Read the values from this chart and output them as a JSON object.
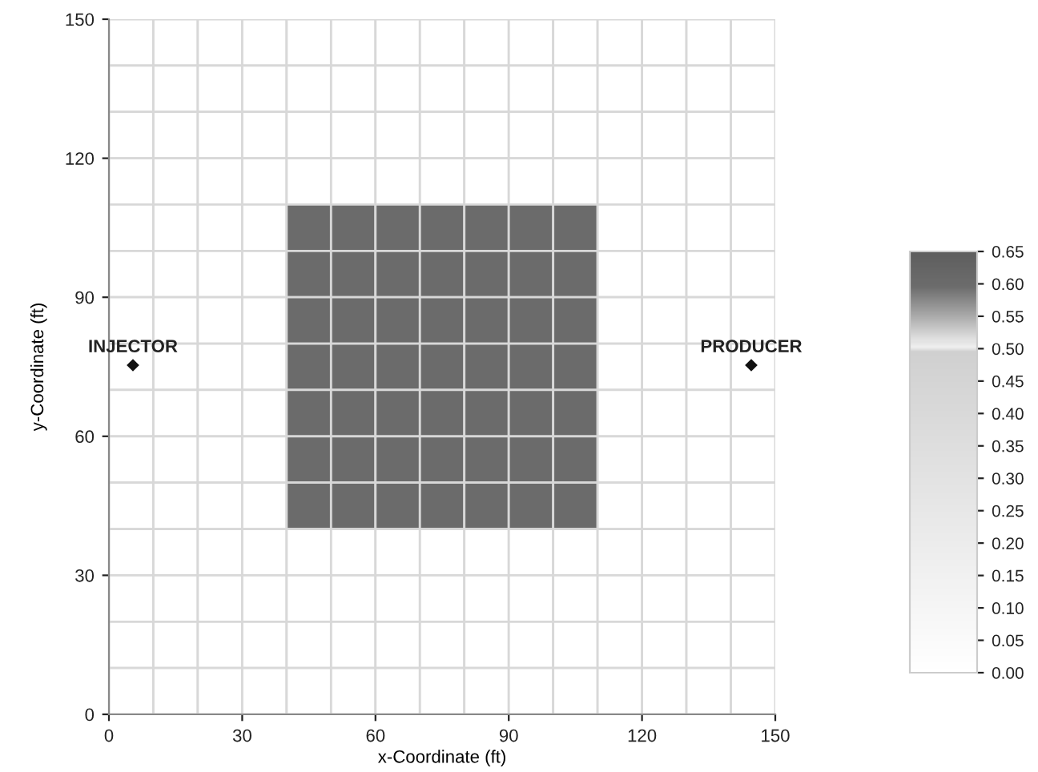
{
  "chart_data": {
    "type": "heatmap",
    "xlabel": "x-Coordinate (ft)",
    "ylabel": "y-Coordinate (ft)",
    "xlim": [
      0,
      150
    ],
    "xticks": [
      0,
      30,
      60,
      90,
      120,
      150
    ],
    "ylim": [
      0,
      150
    ],
    "yticks": [
      0,
      30,
      60,
      90,
      120,
      150
    ],
    "clim": [
      0,
      0.65
    ],
    "cticks": [
      {
        "value": 0,
        "label": "0.00"
      },
      {
        "value": 0.05,
        "label": "0.05"
      },
      {
        "value": 0.1,
        "label": "0.10"
      },
      {
        "value": 0.15,
        "label": "0.15"
      },
      {
        "value": 0.2,
        "label": "0.20"
      },
      {
        "value": 0.25,
        "label": "0.25"
      },
      {
        "value": 0.3,
        "label": "0.30"
      },
      {
        "value": 0.35,
        "label": "0.35"
      },
      {
        "value": 0.4,
        "label": "0.40"
      },
      {
        "value": 0.45,
        "label": "0.45"
      },
      {
        "value": 0.5,
        "label": "0.50"
      },
      {
        "value": 0.55,
        "label": "0.55"
      },
      {
        "value": 0.6,
        "label": "0.60"
      },
      {
        "value": 0.65,
        "label": "0.65"
      }
    ],
    "cells": [
      [
        0,
        0,
        0,
        0,
        0,
        0,
        0,
        0,
        0,
        0,
        0,
        0,
        0,
        0,
        0
      ],
      [
        0,
        0,
        0,
        0,
        0,
        0,
        0,
        0,
        0,
        0,
        0,
        0,
        0,
        0,
        0
      ],
      [
        0,
        0,
        0,
        0,
        0,
        0,
        0,
        0,
        0,
        0,
        0,
        0,
        0,
        0,
        0
      ],
      [
        0,
        0,
        0,
        0,
        0,
        0,
        0,
        0,
        0,
        0,
        0,
        0,
        0,
        0,
        0
      ],
      [
        0,
        0,
        0,
        0,
        0.6,
        0.6,
        0.6,
        0.6,
        0.6,
        0.6,
        0.6,
        0,
        0,
        0,
        0
      ],
      [
        0,
        0,
        0,
        0,
        0.6,
        0.6,
        0.6,
        0.6,
        0.6,
        0.6,
        0.6,
        0,
        0,
        0,
        0
      ],
      [
        0,
        0,
        0,
        0,
        0.6,
        0.6,
        0.6,
        0.6,
        0.6,
        0.6,
        0.6,
        0,
        0,
        0,
        0
      ],
      [
        0,
        0,
        0,
        0,
        0.6,
        0.6,
        0.6,
        0.6,
        0.6,
        0.6,
        0.6,
        0,
        0,
        0,
        0
      ],
      [
        0,
        0,
        0,
        0,
        0.6,
        0.6,
        0.6,
        0.6,
        0.6,
        0.6,
        0.6,
        0,
        0,
        0,
        0
      ],
      [
        0,
        0,
        0,
        0,
        0.6,
        0.6,
        0.6,
        0.6,
        0.6,
        0.6,
        0.6,
        0,
        0,
        0,
        0
      ],
      [
        0,
        0,
        0,
        0,
        0.6,
        0.6,
        0.6,
        0.6,
        0.6,
        0.6,
        0.6,
        0,
        0,
        0,
        0
      ],
      [
        0,
        0,
        0,
        0,
        0,
        0,
        0,
        0,
        0,
        0,
        0,
        0,
        0,
        0,
        0
      ],
      [
        0,
        0,
        0,
        0,
        0,
        0,
        0,
        0,
        0,
        0,
        0,
        0,
        0,
        0,
        0
      ],
      [
        0,
        0,
        0,
        0,
        0,
        0,
        0,
        0,
        0,
        0,
        0,
        0,
        0,
        0,
        0
      ],
      [
        0,
        0,
        0,
        0,
        0,
        0,
        0,
        0,
        0,
        0,
        0,
        0,
        0,
        0,
        0
      ]
    ],
    "annotations": [
      "INJECTOR",
      "PRODUCER"
    ]
  }
}
